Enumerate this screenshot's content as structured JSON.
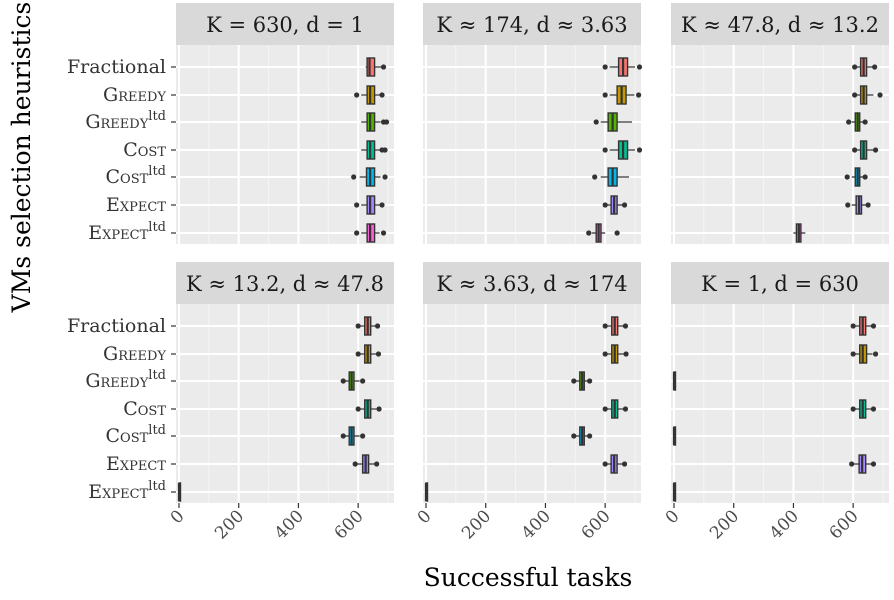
{
  "chart_data": {
    "type": "boxplot",
    "ylabel": "VMs selection heuristics",
    "xlabel": "Successful tasks",
    "xlim": [
      -10,
      720
    ],
    "x_ticks": [
      0,
      200,
      400,
      600
    ],
    "x_tick_labels": [
      "0",
      "200",
      "400",
      "600"
    ],
    "categories": [
      {
        "base": "Fractional",
        "sup": ""
      },
      {
        "base": "Greedy",
        "sup": ""
      },
      {
        "base": "Greedy",
        "sup": "ltd"
      },
      {
        "base": "Cost",
        "sup": ""
      },
      {
        "base": "Cost",
        "sup": "ltd"
      },
      {
        "base": "Expect",
        "sup": ""
      },
      {
        "base": "Expect",
        "sup": "ltd"
      }
    ],
    "panels": [
      {
        "title": "K = 630, d = 1",
        "boxes": [
          {
            "category": "Fractional",
            "min": 625,
            "q1": 630,
            "median": 638,
            "q3": 655,
            "max": 680,
            "fill": "#F8766D",
            "outliers": [
              685
            ]
          },
          {
            "category": "Greedy",
            "min": 610,
            "q1": 630,
            "median": 640,
            "q3": 655,
            "max": 675,
            "fill": "#C49A00",
            "outliers": [
              595,
              680
            ]
          },
          {
            "category": "Greedy ltd",
            "min": 610,
            "q1": 630,
            "median": 640,
            "q3": 655,
            "max": 675,
            "fill": "#53B400",
            "outliers": [
              685,
              695
            ]
          },
          {
            "category": "Cost",
            "min": 610,
            "q1": 630,
            "median": 640,
            "q3": 655,
            "max": 675,
            "fill": "#00C094",
            "outliers": [
              680,
              690
            ]
          },
          {
            "category": "Cost ltd",
            "min": 605,
            "q1": 628,
            "median": 640,
            "q3": 655,
            "max": 675,
            "fill": "#00B6EB",
            "outliers": [
              585,
              690
            ]
          },
          {
            "category": "Expect",
            "min": 610,
            "q1": 630,
            "median": 640,
            "q3": 655,
            "max": 672,
            "fill": "#A58AFF",
            "outliers": [
              595,
              680
            ]
          },
          {
            "category": "Expect ltd",
            "min": 610,
            "q1": 630,
            "median": 640,
            "q3": 655,
            "max": 672,
            "fill": "#FB61D7",
            "outliers": [
              595,
              685
            ]
          }
        ]
      },
      {
        "title": "K ≈ 174, d ≈ 3.63",
        "boxes": [
          {
            "category": "Fractional",
            "min": 615,
            "q1": 645,
            "median": 660,
            "q3": 675,
            "max": 700,
            "fill": "#F8766D",
            "outliers": [
              600,
              715
            ]
          },
          {
            "category": "Greedy",
            "min": 615,
            "q1": 640,
            "median": 655,
            "q3": 670,
            "max": 698,
            "fill": "#C49A00",
            "outliers": [
              600,
              712
            ]
          },
          {
            "category": "Greedy ltd",
            "min": 585,
            "q1": 610,
            "median": 625,
            "q3": 640,
            "max": 690,
            "fill": "#53B400",
            "outliers": [
              570
            ]
          },
          {
            "category": "Cost",
            "min": 615,
            "q1": 645,
            "median": 660,
            "q3": 675,
            "max": 700,
            "fill": "#00C094",
            "outliers": [
              600,
              715
            ]
          },
          {
            "category": "Cost ltd",
            "min": 585,
            "q1": 610,
            "median": 625,
            "q3": 640,
            "max": 680,
            "fill": "#00B6EB",
            "outliers": [
              565
            ]
          },
          {
            "category": "Expect",
            "min": 605,
            "q1": 620,
            "median": 630,
            "q3": 640,
            "max": 658,
            "fill": "#A58AFF",
            "outliers": [
              600,
              665
            ]
          },
          {
            "category": "Expect ltd",
            "min": 555,
            "q1": 570,
            "median": 578,
            "q3": 586,
            "max": 600,
            "fill": "#FB61D7",
            "outliers": [
              545,
              640
            ]
          }
        ]
      },
      {
        "title": "K ≈ 47.8, d ≈ 13.2",
        "boxes": [
          {
            "category": "Fractional",
            "min": 610,
            "q1": 625,
            "median": 635,
            "q3": 645,
            "max": 665,
            "fill": "#F8766D",
            "outliers": [
              605,
              672
            ]
          },
          {
            "category": "Greedy",
            "min": 610,
            "q1": 625,
            "median": 635,
            "q3": 645,
            "max": 668,
            "fill": "#C49A00",
            "outliers": [
              605,
              690
            ]
          },
          {
            "category": "Greedy ltd",
            "min": 595,
            "q1": 607,
            "median": 615,
            "q3": 622,
            "max": 635,
            "fill": "#53B400",
            "outliers": [
              585,
              640
            ]
          },
          {
            "category": "Cost",
            "min": 610,
            "q1": 625,
            "median": 635,
            "q3": 645,
            "max": 668,
            "fill": "#00C094",
            "outliers": [
              605,
              675
            ]
          },
          {
            "category": "Cost ltd",
            "min": 595,
            "q1": 607,
            "median": 615,
            "q3": 622,
            "max": 635,
            "fill": "#00B6EB",
            "outliers": [
              580,
              640
            ]
          },
          {
            "category": "Expect",
            "min": 595,
            "q1": 610,
            "median": 620,
            "q3": 628,
            "max": 645,
            "fill": "#A58AFF",
            "outliers": [
              582,
              650
            ]
          },
          {
            "category": "Expect ltd",
            "min": 400,
            "q1": 410,
            "median": 418,
            "q3": 425,
            "max": 440,
            "fill": "#FB61D7",
            "outliers": []
          }
        ]
      },
      {
        "title": "K ≈ 13.2, d ≈ 47.8",
        "boxes": [
          {
            "category": "Fractional",
            "min": 605,
            "q1": 622,
            "median": 632,
            "q3": 642,
            "max": 660,
            "fill": "#F8766D",
            "outliers": [
              600,
              665
            ]
          },
          {
            "category": "Greedy",
            "min": 605,
            "q1": 622,
            "median": 632,
            "q3": 642,
            "max": 662,
            "fill": "#C49A00",
            "outliers": [
              600,
              668
            ]
          },
          {
            "category": "Greedy ltd",
            "min": 555,
            "q1": 570,
            "median": 578,
            "q3": 586,
            "max": 605,
            "fill": "#53B400",
            "outliers": [
              550,
              615
            ]
          },
          {
            "category": "Cost",
            "min": 605,
            "q1": 622,
            "median": 632,
            "q3": 642,
            "max": 662,
            "fill": "#00C094",
            "outliers": [
              600,
              670
            ]
          },
          {
            "category": "Cost ltd",
            "min": 555,
            "q1": 570,
            "median": 578,
            "q3": 586,
            "max": 605,
            "fill": "#00B6EB",
            "outliers": [
              550,
              615
            ]
          },
          {
            "category": "Expect",
            "min": 595,
            "q1": 615,
            "median": 625,
            "q3": 635,
            "max": 655,
            "fill": "#A58AFF",
            "outliers": [
              590,
              662
            ]
          },
          {
            "category": "Expect ltd",
            "min": 0,
            "q1": 0,
            "median": 0,
            "q3": 0,
            "max": 0,
            "fill": "#FB61D7",
            "outliers": []
          }
        ]
      },
      {
        "title": "K ≈ 3.63, d ≈ 174",
        "boxes": [
          {
            "category": "Fractional",
            "min": 605,
            "q1": 622,
            "median": 632,
            "q3": 642,
            "max": 662,
            "fill": "#F8766D",
            "outliers": [
              600,
              668
            ]
          },
          {
            "category": "Greedy",
            "min": 605,
            "q1": 622,
            "median": 632,
            "q3": 642,
            "max": 665,
            "fill": "#C49A00",
            "outliers": [
              600,
              670
            ]
          },
          {
            "category": "Greedy ltd",
            "min": 500,
            "q1": 515,
            "median": 523,
            "q3": 530,
            "max": 545,
            "fill": "#53B400",
            "outliers": [
              495,
              548
            ]
          },
          {
            "category": "Cost",
            "min": 605,
            "q1": 622,
            "median": 632,
            "q3": 642,
            "max": 662,
            "fill": "#00C094",
            "outliers": [
              600,
              668
            ]
          },
          {
            "category": "Cost ltd",
            "min": 500,
            "q1": 515,
            "median": 523,
            "q3": 530,
            "max": 545,
            "fill": "#00B6EB",
            "outliers": [
              495,
              548
            ]
          },
          {
            "category": "Expect",
            "min": 605,
            "q1": 620,
            "median": 630,
            "q3": 640,
            "max": 660,
            "fill": "#A58AFF",
            "outliers": [
              600,
              665
            ]
          },
          {
            "category": "Expect ltd",
            "min": 0,
            "q1": 0,
            "median": 0,
            "q3": 0,
            "max": 0,
            "fill": "#FB61D7",
            "outliers": []
          }
        ]
      },
      {
        "title": "K = 1, d = 630",
        "boxes": [
          {
            "category": "Fractional",
            "min": 605,
            "q1": 622,
            "median": 632,
            "q3": 642,
            "max": 662,
            "fill": "#F8766D",
            "outliers": [
              600,
              668
            ]
          },
          {
            "category": "Greedy",
            "min": 605,
            "q1": 622,
            "median": 632,
            "q3": 645,
            "max": 665,
            "fill": "#C49A00",
            "outliers": [
              600,
              675
            ]
          },
          {
            "category": "Greedy ltd",
            "min": 0,
            "q1": 0,
            "median": 0,
            "q3": 0,
            "max": 0,
            "fill": "#53B400",
            "outliers": []
          },
          {
            "category": "Cost",
            "min": 605,
            "q1": 622,
            "median": 632,
            "q3": 642,
            "max": 662,
            "fill": "#00C094",
            "outliers": [
              600,
              668
            ]
          },
          {
            "category": "Cost ltd",
            "min": 0,
            "q1": 0,
            "median": 0,
            "q3": 0,
            "max": 0,
            "fill": "#00B6EB",
            "outliers": []
          },
          {
            "category": "Expect",
            "min": 600,
            "q1": 620,
            "median": 630,
            "q3": 642,
            "max": 662,
            "fill": "#A58AFF",
            "outliers": [
              595,
              668
            ]
          },
          {
            "category": "Expect ltd",
            "min": 0,
            "q1": 0,
            "median": 0,
            "q3": 0,
            "max": 0,
            "fill": "#FB61D7",
            "outliers": []
          }
        ]
      }
    ],
    "panel_background": "#EBEBEB",
    "strip_background": "#D9D9D9",
    "grid": true,
    "legend": "none"
  }
}
